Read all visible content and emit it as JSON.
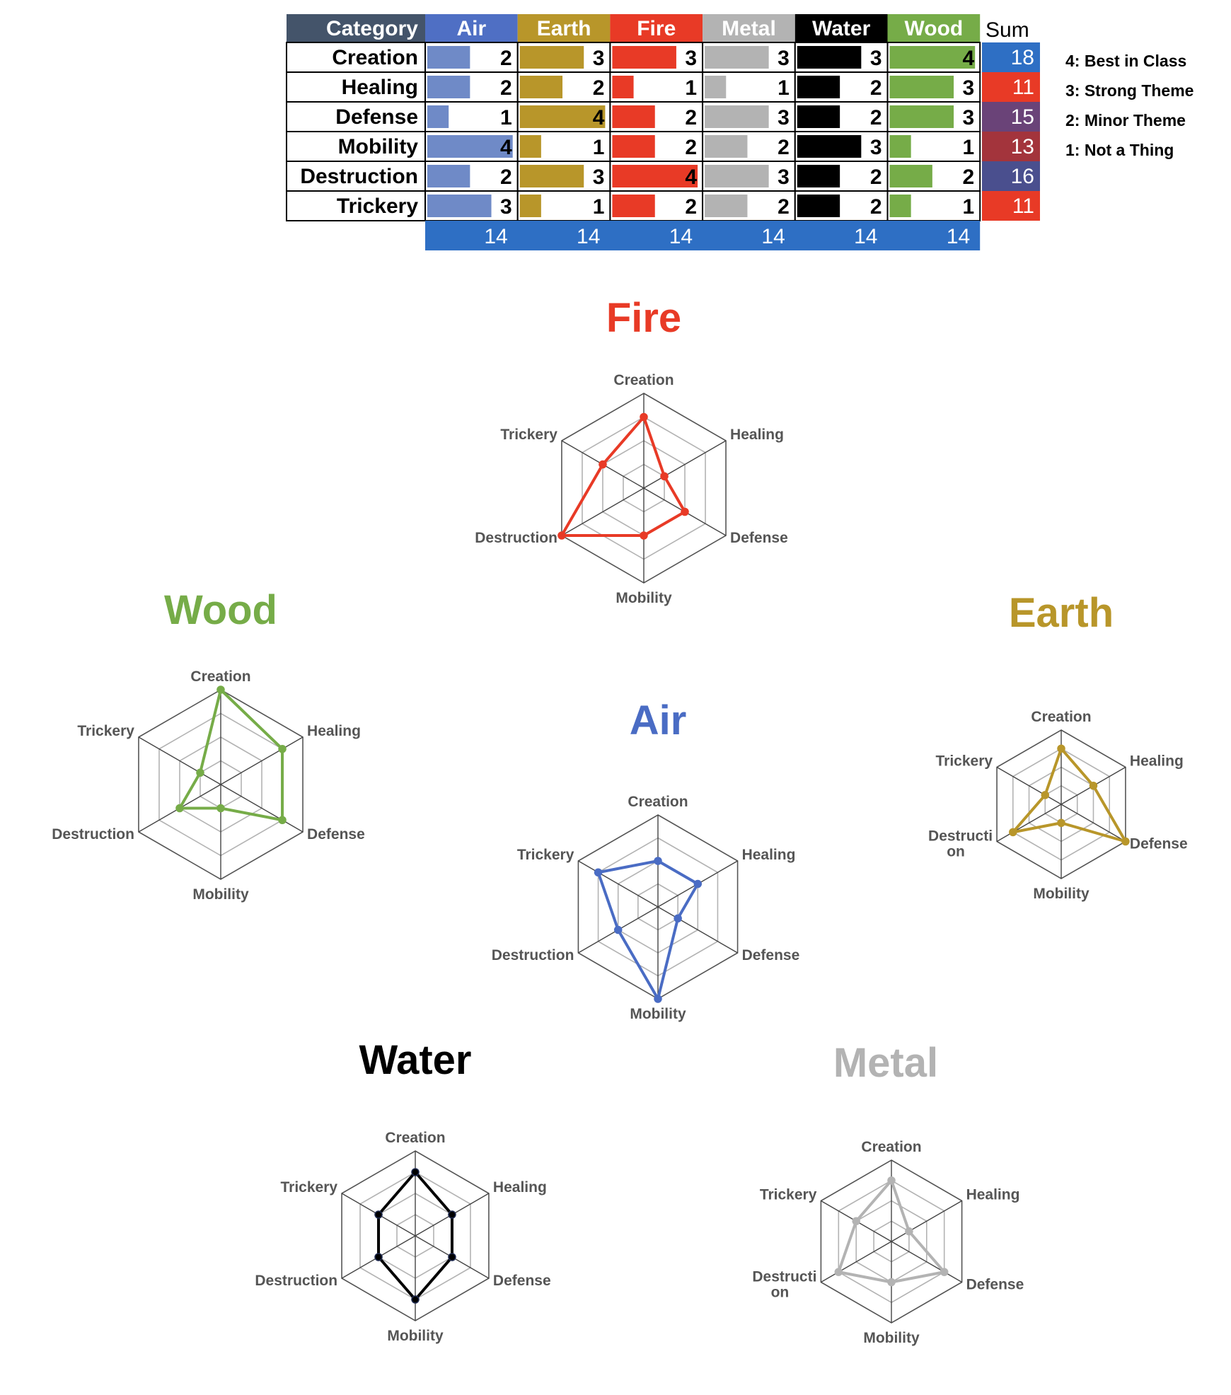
{
  "chart_data": [
    {
      "type": "table",
      "columns": [
        "Category",
        "Air",
        "Earth",
        "Fire",
        "Metal",
        "Water",
        "Wood",
        "Sum"
      ],
      "column_colors": [
        "#44546a",
        "#4f6fc4",
        "#b8962a",
        "#e83a26",
        "#b3b3b3",
        "#000000",
        "#76ac48"
      ],
      "rows": [
        {
          "category": "Creation",
          "values": [
            2,
            3,
            3,
            3,
            3,
            4
          ],
          "sum": 18,
          "sum_color": "#2e6fc4"
        },
        {
          "category": "Healing",
          "values": [
            2,
            2,
            1,
            1,
            2,
            3
          ],
          "sum": 11,
          "sum_color": "#e83a26"
        },
        {
          "category": "Defense",
          "values": [
            1,
            4,
            2,
            3,
            2,
            3
          ],
          "sum": 15,
          "sum_color": "#6a4378"
        },
        {
          "category": "Mobility",
          "values": [
            4,
            1,
            2,
            2,
            3,
            1
          ],
          "sum": 13,
          "sum_color": "#a3343c"
        },
        {
          "category": "Destruction",
          "values": [
            2,
            3,
            4,
            3,
            2,
            2
          ],
          "sum": 16,
          "sum_color": "#4a4f8e"
        },
        {
          "category": "Trickery",
          "values": [
            3,
            1,
            2,
            2,
            2,
            1
          ],
          "sum": 11,
          "sum_color": "#e83a26"
        }
      ],
      "column_totals": [
        14,
        14,
        14,
        14,
        14,
        14
      ],
      "totals_color": "#2e6fc4",
      "bar_colors": [
        "#6f8ac7",
        "#b8962a",
        "#e83a26",
        "#b3b3b3",
        "#000000",
        "#76ac48"
      ],
      "max_value": 4,
      "legend": [
        "4: Best in Class",
        "3: Strong Theme",
        "2: Minor Theme",
        "1: Not a Thing"
      ]
    },
    {
      "type": "radar",
      "title": "Fire",
      "color": "#e83a26",
      "axes": [
        "Creation",
        "Healing",
        "Defense",
        "Mobility",
        "Destruction",
        "Trickery"
      ],
      "values": [
        3,
        1,
        2,
        2,
        4,
        2
      ],
      "max": 4
    },
    {
      "type": "radar",
      "title": "Wood",
      "color": "#76ac48",
      "axes": [
        "Creation",
        "Healing",
        "Defense",
        "Mobility",
        "Destruction",
        "Trickery"
      ],
      "values": [
        4,
        3,
        3,
        1,
        2,
        1
      ],
      "max": 4
    },
    {
      "type": "radar",
      "title": "Earth",
      "color": "#b8962a",
      "axes": [
        "Creation",
        "Healing",
        "Defense",
        "Mobility",
        "Destructi\non",
        "Trickery"
      ],
      "values": [
        3,
        2,
        4,
        1,
        3,
        1
      ],
      "max": 4
    },
    {
      "type": "radar",
      "title": "Air",
      "color": "#4a6cc4",
      "axes": [
        "Creation",
        "Healing",
        "Defense",
        "Mobility",
        "Destruction",
        "Trickery"
      ],
      "values": [
        2,
        2,
        1,
        4,
        2,
        3
      ],
      "max": 4
    },
    {
      "type": "radar",
      "title": "Water",
      "color": "#000000",
      "axes": [
        "Creation",
        "Healing",
        "Defense",
        "Mobility",
        "Destruction",
        "Trickery"
      ],
      "values": [
        3,
        2,
        2,
        3,
        2,
        2
      ],
      "max": 4
    },
    {
      "type": "radar",
      "title": "Metal",
      "color": "#b3b3b3",
      "axes": [
        "Creation",
        "Healing",
        "Defense",
        "Mobility",
        "Destructi\non",
        "Trickery"
      ],
      "values": [
        3,
        1,
        3,
        2,
        3,
        2
      ],
      "max": 4
    }
  ]
}
